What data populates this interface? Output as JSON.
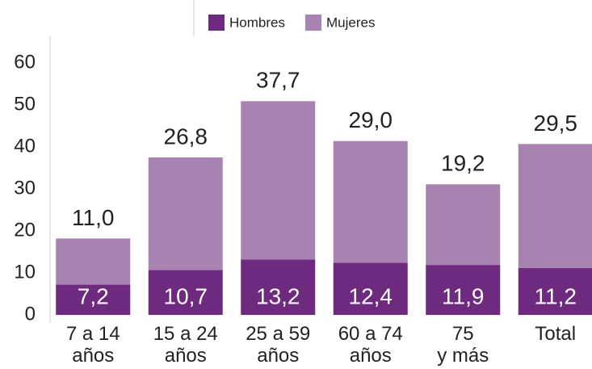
{
  "chart_data": {
    "type": "stacked_bar",
    "categories": [
      "7 a 14\naños",
      "15 a 24\naños",
      "25 a 59\naños",
      "60 a 74\naños",
      "75\ny más",
      "Total"
    ],
    "series": [
      {
        "name": "Hombres",
        "color": "#6e2a7e",
        "values": [
          7.2,
          10.7,
          13.2,
          12.4,
          11.9,
          11.2
        ],
        "value_labels": [
          "7,2",
          "10,7",
          "13,2",
          "12,4",
          "11,9",
          "11,2"
        ]
      },
      {
        "name": "Mujeres",
        "color": "#a883b2",
        "values": [
          11.0,
          26.8,
          37.7,
          29.0,
          19.2,
          29.5
        ],
        "value_labels": [
          "11,0",
          "26,8",
          "37,7",
          "29,0",
          "19,2",
          "29,5"
        ]
      }
    ],
    "ylim": [
      0,
      60
    ],
    "yticks": [
      0,
      10,
      20,
      30,
      40,
      50,
      60
    ]
  }
}
